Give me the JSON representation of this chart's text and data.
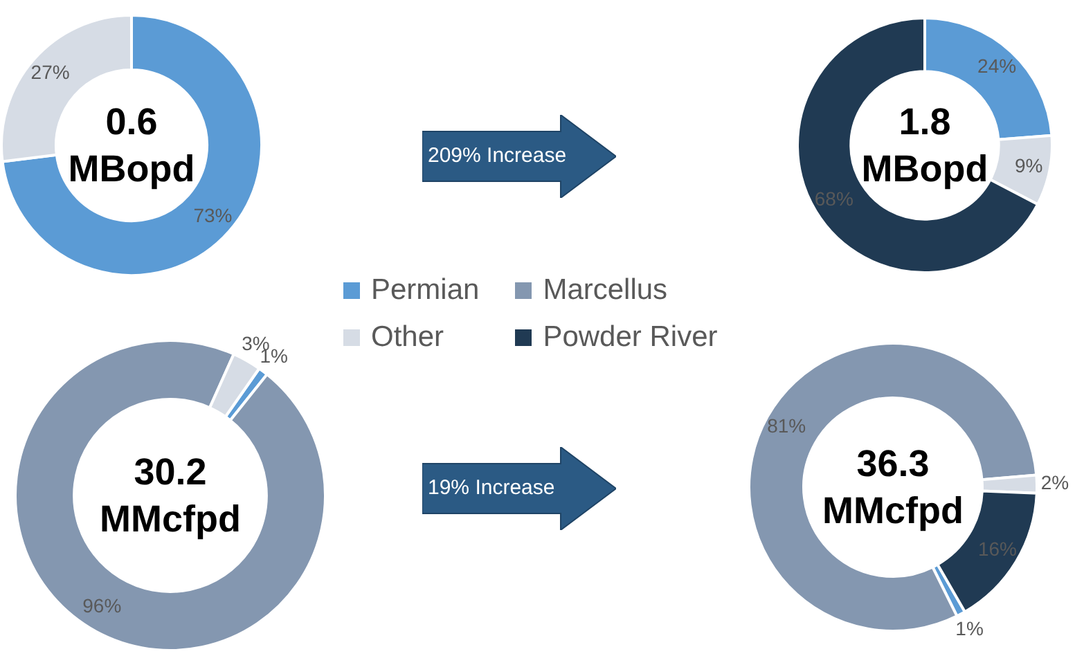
{
  "chart_data": [
    {
      "type": "donut",
      "title": "0.6 MBopd",
      "categories": [
        "Permian",
        "Marcellus",
        "Other",
        "Powder River"
      ],
      "values": [
        73,
        null,
        27,
        null
      ],
      "colors": [
        "#5b9bd5",
        "#8497b0",
        "#d6dce5",
        "#203a53"
      ],
      "value_labels": [
        "73%",
        null,
        "27%",
        null
      ],
      "legend": "bottom right",
      "annotations": [
        "209% Increase"
      ]
    },
    {
      "type": "donut",
      "title": "1.8 MBopd",
      "categories": [
        null,
        null,
        null,
        null
      ],
      "values": [
        24,
        null,
        9,
        68
      ],
      "colors": [
        "#5b9bd5",
        "#8497b0",
        "#d6dce5",
        "#203a53"
      ],
      "value_labels": [
        "24%",
        null,
        "9%",
        "68%"
      ]
    },
    {
      "type": "donut",
      "title": "30.2 MMcfpd",
      "categories": [
        null,
        null,
        null,
        null
      ],
      "values": [
        1,
        96,
        3,
        null
      ],
      "colors": [
        "#5b9bd5",
        "#8497b0",
        "#d6dce5",
        "#203a53"
      ],
      "value_labels": [
        "1%",
        "96%",
        "3%",
        null
      ],
      "annotations": [
        "19% Increase"
      ]
    },
    {
      "type": "donut",
      "title": "36.3 MMcfpd",
      "categories": [
        null,
        null,
        null,
        null
      ],
      "values": [
        1,
        81,
        2,
        16
      ],
      "colors": [
        "#5b9bd5",
        "#8497b0",
        "#d6dce5",
        "#203a53"
      ],
      "value_labels": [
        "1%",
        "81%",
        "2%",
        "16%"
      ]
    }
  ]
}
